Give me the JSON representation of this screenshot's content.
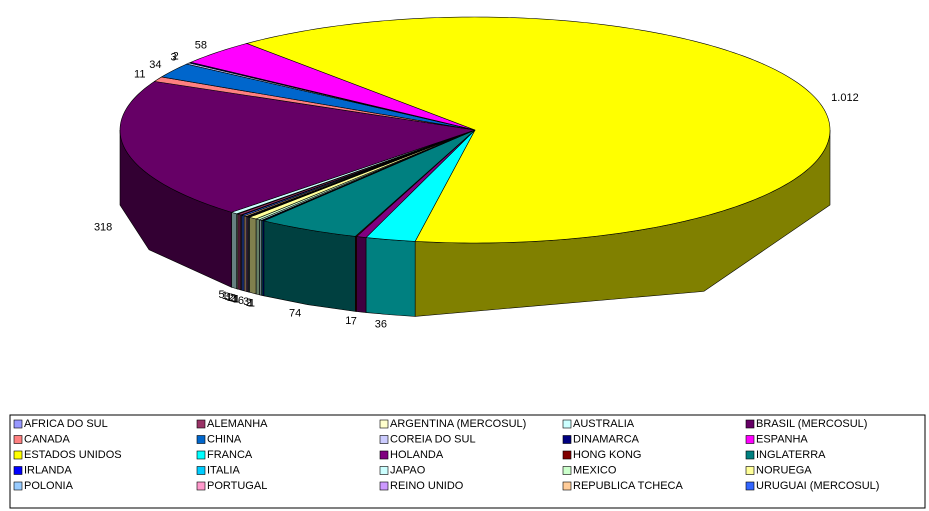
{
  "chart_data": {
    "type": "pie",
    "categories": [
      "AFRICA DO SUL",
      "ALEMANHA",
      "ARGENTINA (MERCOSUL)",
      "AUSTRALIA",
      "BRASIL (MERCOSUL)",
      "CANADA",
      "CHINA",
      "COREIA DO SUL",
      "DINAMARCA",
      "ESPANHA",
      "ESTADOS UNIDOS",
      "FRANCA",
      "HOLANDA",
      "HONG KONG",
      "INGLATERRA",
      "IRLANDA",
      "ITALIA",
      "JAPAO",
      "MEXICO",
      "NORUEGA",
      "POLONIA",
      "PORTUGAL",
      "REINO UNIDO",
      "REPUBLICA TCHECA",
      "URUGUAI (MERCOSUL)"
    ],
    "values": [
      1,
      3,
      1,
      5,
      318,
      11,
      34,
      3,
      2,
      58,
      1012,
      36,
      7,
      1,
      74,
      1,
      1,
      2,
      3,
      6,
      1,
      1,
      1,
      2,
      2
    ],
    "value_labels": [
      "1",
      "3",
      "1",
      "5",
      "318",
      "11",
      "34",
      "3",
      "2",
      "58",
      "1.012",
      "36",
      "7",
      "1",
      "74",
      "1",
      "1",
      "2",
      "3",
      "6",
      "1",
      "1",
      "1",
      "2",
      "2"
    ],
    "colors": [
      "#9999FF",
      "#993366",
      "#FFFFCC",
      "#CCFFFF",
      "#660066",
      "#FF8080",
      "#0066CC",
      "#CCCCFF",
      "#000080",
      "#FF00FF",
      "#FFFF00",
      "#00FFFF",
      "#800080",
      "#800000",
      "#008080",
      "#0000FF",
      "#00CCFF",
      "#CCFFFF",
      "#CCFFCC",
      "#FFFF99",
      "#99CCFF",
      "#FF99CC",
      "#CC99FF",
      "#FFCC99",
      "#3366FF"
    ],
    "legend": "bottom"
  }
}
